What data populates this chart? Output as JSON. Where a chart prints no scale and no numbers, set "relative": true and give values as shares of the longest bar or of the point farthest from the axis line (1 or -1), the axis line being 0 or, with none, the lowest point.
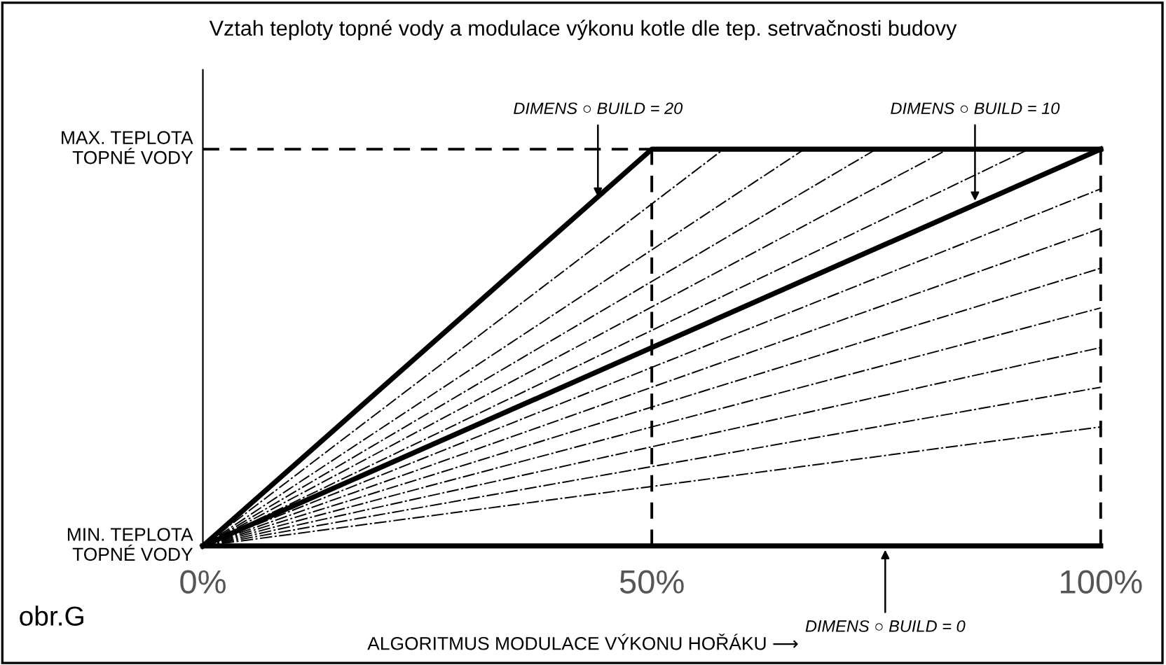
{
  "chart_data": {
    "type": "line",
    "title": "Vztah teploty topné vody a modulace výkonu kotle dle tep. setrvačnosti budovy",
    "xlabel": "ALGORITMUS MODULACE VÝKONU HOŘÁKU ⟶",
    "xlim": [
      0,
      100
    ],
    "xticks": [
      {
        "value": 0,
        "label": "0%"
      },
      {
        "value": 50,
        "label": "50%"
      },
      {
        "value": 100,
        "label": "100%"
      }
    ],
    "relative": true,
    "grid": false,
    "legend": false,
    "marker": "none",
    "series": [
      {
        "color": "#000000",
        "line_style": "solid",
        "x": [
          0,
          50,
          100
        ],
        "values": [
          0,
          1,
          1
        ]
      },
      {
        "color": "#000000",
        "line_style": "solid",
        "x": [
          0,
          100
        ],
        "values": [
          0,
          1
        ]
      },
      {
        "color": "#000000",
        "line_style": "solid",
        "x": [
          0,
          100
        ],
        "values": [
          0,
          0
        ]
      },
      {
        "color": "#000000",
        "line_style": "dashdot",
        "x": [
          0,
          58
        ],
        "values": [
          0,
          1
        ]
      },
      {
        "color": "#000000",
        "line_style": "dashdot",
        "x": [
          0,
          67
        ],
        "values": [
          0,
          1
        ]
      },
      {
        "color": "#000000",
        "line_style": "dashdot",
        "x": [
          0,
          75
        ],
        "values": [
          0,
          1
        ]
      },
      {
        "color": "#000000",
        "line_style": "dashdot",
        "x": [
          0,
          83
        ],
        "values": [
          0,
          1
        ]
      },
      {
        "color": "#000000",
        "line_style": "dashdot",
        "x": [
          0,
          92
        ],
        "values": [
          0,
          1
        ]
      },
      {
        "color": "#000000",
        "line_style": "dashdot",
        "x": [
          0,
          100
        ],
        "values": [
          0,
          0.9
        ]
      },
      {
        "color": "#000000",
        "line_style": "dashdot",
        "x": [
          0,
          100
        ],
        "values": [
          0,
          0.8
        ]
      },
      {
        "color": "#000000",
        "line_style": "dashdot",
        "x": [
          0,
          100
        ],
        "values": [
          0,
          0.7
        ]
      },
      {
        "color": "#000000",
        "line_style": "dashdot",
        "x": [
          0,
          100
        ],
        "values": [
          0,
          0.6
        ]
      },
      {
        "color": "#000000",
        "line_style": "dashdot",
        "x": [
          0,
          100
        ],
        "values": [
          0,
          0.5
        ]
      },
      {
        "color": "#000000",
        "line_style": "dashdot",
        "x": [
          0,
          100
        ],
        "values": [
          0,
          0.4
        ]
      },
      {
        "color": "#000000",
        "line_style": "dashdot",
        "x": [
          0,
          100
        ],
        "values": [
          0,
          0.3
        ]
      },
      {
        "color": "#000000",
        "line_style": "dashed",
        "x": [
          50,
          50
        ],
        "values": [
          0,
          1
        ]
      },
      {
        "color": "#000000",
        "line_style": "dashed",
        "x": [
          100,
          100
        ],
        "values": [
          0,
          1
        ]
      },
      {
        "color": "#000000",
        "line_style": "dashed",
        "x": [
          0,
          50
        ],
        "values": [
          1,
          1
        ]
      }
    ],
    "annotations": [
      {
        "text": "MIN. TEPLOTA\nTOPNÉ VODY",
        "x": 0,
        "y": 0
      },
      {
        "text": "MAX. TEPLOTA\nTOPNÉ VODY",
        "x": 0,
        "y": 1
      },
      {
        "text": "DIMENS ○ BUILD = 20",
        "x": 44,
        "y": 0.87
      },
      {
        "text": "DIMENS ○ BUILD = 10",
        "x": 86,
        "y": 0.86
      },
      {
        "text": "DIMENS ○ BUILD = 0",
        "x": 76,
        "y": 0
      },
      "obr.G"
    ]
  }
}
